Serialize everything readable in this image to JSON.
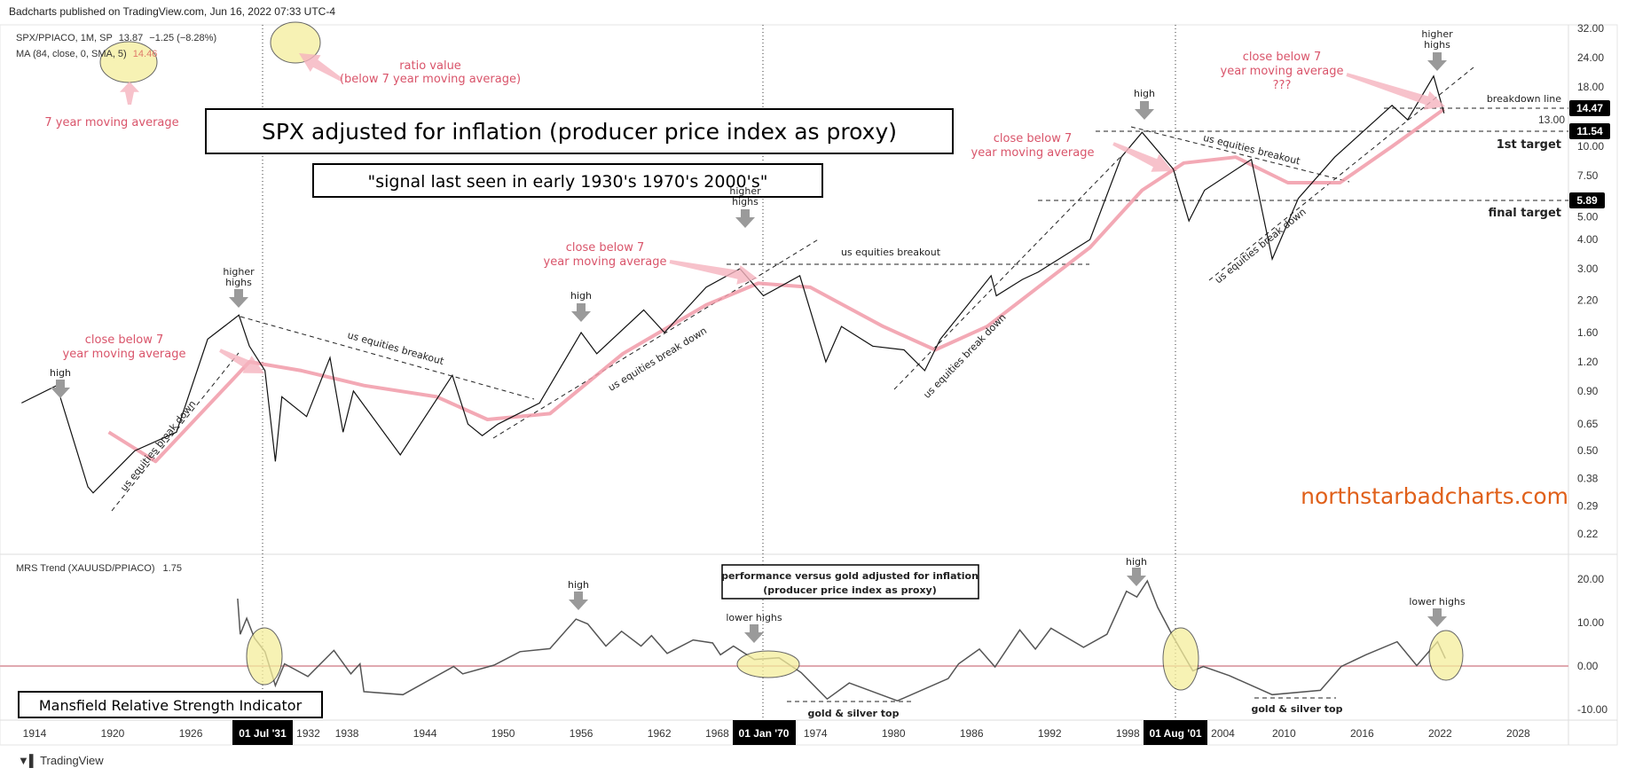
{
  "header": {
    "published": "Badcharts published on TradingView.com, Jun 16, 2022 07:33 UTC-4"
  },
  "main_legend": {
    "symbol": "SPX/PPIACO, 1M, SP",
    "value": "13.87",
    "change": "−1.25 (−8.28%)",
    "ma_label": "MA (84, close, 0, SMA, 5)",
    "ma_value": "14.46"
  },
  "lower_legend": {
    "label": "MRS Trend (XAUUSD/PPIACO)",
    "value": "1.75"
  },
  "annotations": {
    "title": "SPX adjusted for inflation (producer price index as proxy)",
    "subtitle": "\"signal last seen in early 1930's 1970's 2000's\"",
    "ma_note": "7 year moving average",
    "ratio_note_1": "ratio value",
    "ratio_note_2": "(below 7 year moving average)",
    "close_below_1": "close below 7",
    "close_below_2": "year moving average",
    "close_below_q": "???",
    "high": "high",
    "higher": "higher",
    "highs": "highs",
    "breakdown": "us equities break down",
    "breakout": "us equities breakout",
    "breakdown_line": "breakdown line",
    "first_target": "1st target",
    "final_target": "final target",
    "watermark": "northstarbadcharts.com",
    "perf_1": "performance versus gold adjusted for inflation",
    "perf_2": "(producer price index as proxy)",
    "lower_highs": "lower highs",
    "gold_top": "gold & silver top",
    "mansfield": "Mansfield Relative Strength Indicator"
  },
  "price_tags": [
    "14.47",
    "11.54",
    "5.89"
  ],
  "time_tags": [
    "01 Jul '31",
    "01 Jan '70",
    "01 Aug '01"
  ],
  "footer": {
    "brand": "TradingView"
  },
  "colors": {
    "price": "#111111",
    "ma": "#f19aa8",
    "mrs": "#555555",
    "zero": "#e0a9b0",
    "watermark": "#e0601a",
    "annotation": "#d9546a"
  },
  "chart_data": [
    {
      "type": "line",
      "scale": "log",
      "x_ticks": [
        "1914",
        "1920",
        "1926",
        "1932",
        "1938",
        "1944",
        "1950",
        "1956",
        "1962",
        "1968",
        "1974",
        "1980",
        "1986",
        "1992",
        "1998",
        "2004",
        "2010",
        "2016",
        "2022",
        "2028"
      ],
      "y_ticks": [
        "32.00",
        "24.00",
        "18.00",
        "13.00",
        "10.00",
        "7.50",
        "5.00",
        "4.00",
        "3.00",
        "2.20",
        "1.60",
        "1.20",
        "0.90",
        "0.65",
        "0.50",
        "0.38",
        "0.29",
        "0.22"
      ],
      "ylim": [
        0.22,
        32
      ],
      "series": [
        {
          "name": "SPX/PPIACO",
          "x": [
            1913,
            1915.7,
            1918.1,
            1918.5,
            1921.7,
            1924.9,
            1927.3,
            1929.7,
            1930.5,
            1931.7,
            1932.5,
            1933,
            1934.9,
            1936.7,
            1937.7,
            1938.5,
            1942.1,
            1946.1,
            1947.3,
            1948.4,
            1949.6,
            1952.8,
            1956,
            1957.2,
            1960.8,
            1962.4,
            1965.6,
            1968.2,
            1970,
            1972.8,
            1974.8,
            1976,
            1978.4,
            1980.8,
            1982.4,
            1983.6,
            1987.5,
            1987.9,
            1989.9,
            1991.1,
            1995.1,
            1997.5,
            1999.1,
            2001.5,
            2002.7,
            2003.9,
            2007.5,
            2009.1,
            2011.1,
            2013.9,
            2018.3,
            2019.5,
            2021.5,
            2022.3
          ],
          "y": [
            0.8,
            0.95,
            0.35,
            0.33,
            0.5,
            0.6,
            1.5,
            1.9,
            1.4,
            1.1,
            0.45,
            0.85,
            0.7,
            1.25,
            0.6,
            0.9,
            0.48,
            1.05,
            0.65,
            0.58,
            0.65,
            0.8,
            1.6,
            1.3,
            2.0,
            1.6,
            2.5,
            3.0,
            2.3,
            2.8,
            1.2,
            1.7,
            1.4,
            1.35,
            1.1,
            1.5,
            2.8,
            2.3,
            2.7,
            2.9,
            4.0,
            9,
            11.5,
            8,
            4.8,
            6.5,
            8.8,
            3.3,
            6,
            9,
            15,
            13,
            20,
            13.87
          ]
        },
        {
          "name": "MA (84, close, 0, SMA, 5)",
          "x": [
            1919.7,
            1923.3,
            1930.5,
            1934.5,
            1939.3,
            1944.9,
            1948.8,
            1953.6,
            1959.2,
            1965.6,
            1969.6,
            1973.6,
            1979.2,
            1983.2,
            1987.2,
            1991.1,
            1995.1,
            1999.1,
            2002.3,
            2006.3,
            2010.3,
            2014.3,
            2018.3,
            2022.3
          ],
          "y": [
            0.6,
            0.45,
            1.2,
            1.1,
            0.95,
            0.85,
            0.68,
            0.72,
            1.3,
            2.1,
            2.6,
            2.5,
            1.7,
            1.35,
            1.7,
            2.5,
            3.7,
            6.5,
            8.5,
            9,
            7,
            7,
            10,
            14.46
          ]
        }
      ]
    },
    {
      "type": "line",
      "y_ticks": [
        "20.00",
        "10.00",
        "0.00",
        "-10.00"
      ],
      "ylim": [
        -12,
        25
      ],
      "series": [
        {
          "name": "MRS Trend (XAUUSD/PPIACO)",
          "x": [
            1929.6,
            1929.8,
            1930.3,
            1930.9,
            1931.7,
            1932.5,
            1933.2,
            1935,
            1937,
            1938.3,
            1939,
            1939.3,
            1942.3,
            1946.2,
            1946.9,
            1949.3,
            1951.3,
            1953.6,
            1955.6,
            1956.5,
            1957.9,
            1959.1,
            1960.6,
            1961.4,
            1962.6,
            1964.6,
            1966.1,
            1966.7,
            1967.7,
            1969.3,
            1971.2,
            1972.9,
            1974.9,
            1976.6,
            1980.3,
            1984.2,
            1985,
            1986.6,
            1987.8,
            1989.7,
            1990.9,
            1992.1,
            1994.6,
            1996.4,
            1997.9,
            1998.7,
            1999.5,
            2000.3,
            2001.5,
            2003,
            2003.8,
            2005.8,
            2009.1,
            2012.8,
            2014.4,
            2016.3,
            2018.7,
            2020.2,
            2021.8,
            2022.4
          ],
          "y": [
            15.5,
            7.3,
            11,
            6.4,
            3.3,
            -4.5,
            0.5,
            -2.4,
            3.6,
            -1.8,
            0.5,
            -5.9,
            -6.6,
            -0.1,
            -1.8,
            0.2,
            3.3,
            4.0,
            10.8,
            9.7,
            4.6,
            8.0,
            4.6,
            7.0,
            2.9,
            6.0,
            5.3,
            2.6,
            4.6,
            1.5,
            1.9,
            -1.5,
            -7.6,
            -3.9,
            -8,
            -2.9,
            0.5,
            3.9,
            -0.2,
            8.3,
            3.9,
            8.7,
            4.3,
            7.3,
            17.2,
            15.9,
            19.6,
            13.5,
            6.7,
            -1.1,
            -0.1,
            -2.2,
            -6.6,
            -5.6,
            -0.1,
            2.6,
            5.6,
            0.1,
            5.6,
            1.75
          ]
        }
      ]
    }
  ]
}
